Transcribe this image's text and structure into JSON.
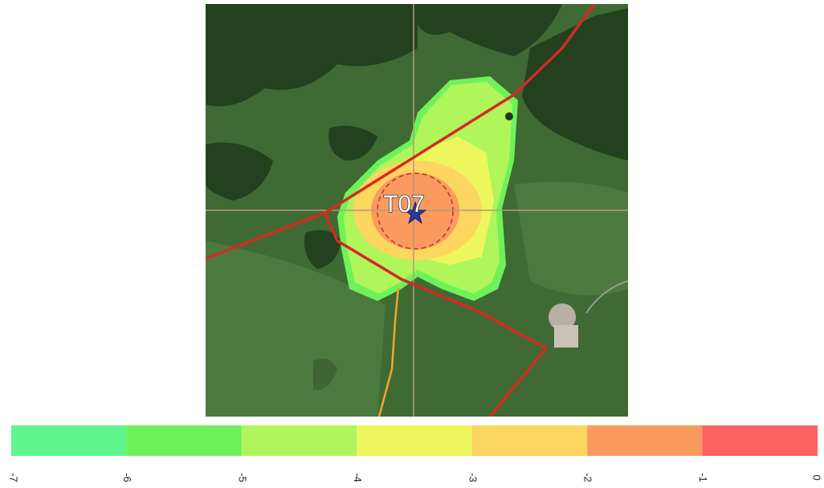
{
  "map": {
    "label": "T07"
  },
  "colorbar": {
    "ticks": [
      -7,
      -6,
      -5,
      -4,
      -3,
      -2,
      -1,
      0
    ],
    "colors": [
      "#5ef58a",
      "#6ef25a",
      "#b0f55a",
      "#ecf75e",
      "#fcd65e",
      "#fb9a5e",
      "#fb6260"
    ]
  }
}
